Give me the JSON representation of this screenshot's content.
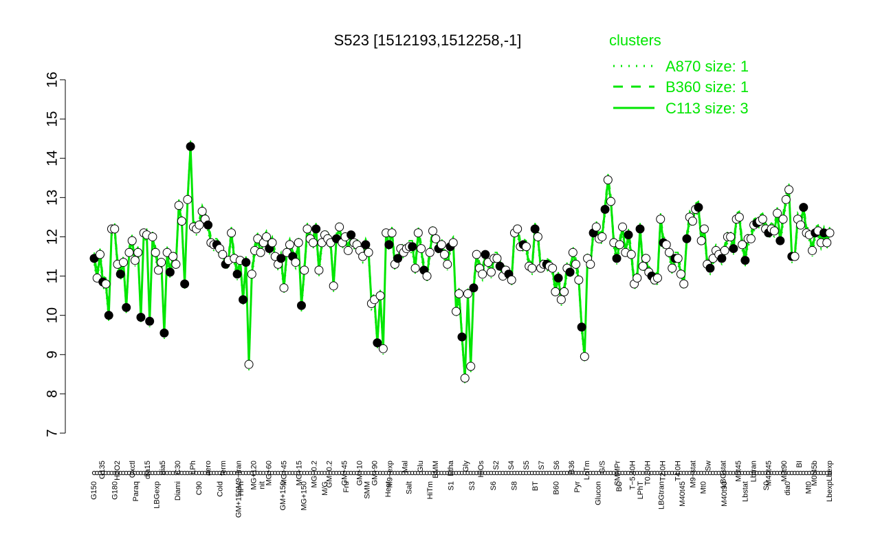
{
  "chart_data": {
    "type": "line",
    "title": "S523 [1512193,1512258,-1]",
    "xlabel": "",
    "ylabel": "",
    "ylim": [
      7,
      16
    ],
    "yticks": [
      7,
      8,
      9,
      10,
      11,
      12,
      13,
      14,
      15,
      16
    ],
    "grid": false,
    "legend_position": "top-right",
    "legend": {
      "title": "clusters",
      "entries": [
        {
          "label": "A870 size: 1",
          "style": "dotted"
        },
        {
          "label": "B360 size: 1",
          "style": "dashed"
        },
        {
          "label": "C113 size: 3",
          "style": "solid"
        }
      ]
    },
    "x_tick_labels_top": [
      "G135",
      "H2O2",
      "Oxctl",
      "dia15",
      "dia5",
      "C30",
      "LPh",
      "aero",
      "ferm",
      "GM+150M9−tran",
      "MG+120",
      "MG+60",
      "MG+45",
      "MG+15",
      "MG−0.2",
      "GM−0.2",
      "GM+45",
      "GM+10",
      "GM+90",
      "M9−exp",
      "Mal",
      "Glu",
      "BMM",
      "Etha",
      "Gly",
      "HiOs",
      "S2",
      "S4",
      "S5",
      "S7",
      "S6",
      "B36",
      "LoTm",
      "G/S",
      "SMMPr",
      "T−5.40H",
      "T0.30H",
      "T2.0H",
      "T4.0H",
      "M9−stat",
      "Sw",
      "LBGstat",
      "M0t45",
      "Lbtran",
      "M40t45",
      "M0t90",
      "BI",
      "M0t45b",
      "Lbexp"
    ],
    "x_tick_labels_bottom": [
      "G150",
      "G180",
      "Paraq",
      "LBGexp",
      "Diami",
      "C90",
      "Cold",
      "HPh",
      "nit",
      "GM+150",
      "MG+150",
      "M/G",
      "Fru",
      "SMM",
      "Heat",
      "Salt",
      "HiTm",
      "S1",
      "S3",
      "S6",
      "S8",
      "BT",
      "B60",
      "Pyr",
      "Glucon",
      "BC",
      "LPhT",
      "LBGtran",
      "M40t45",
      "Mt0",
      "M40t90",
      "Lbstat",
      "S0",
      "dia0",
      "Mt0",
      "Lbexp"
    ],
    "line_color": "#00e600",
    "point_fill": "#ffffff",
    "point_fill_dark": "#000000",
    "series": [
      {
        "values": [
          11.45,
          10.95,
          11.55,
          10.85,
          10.8,
          10.0,
          12.2,
          12.2,
          11.3,
          11.05,
          11.35,
          10.2,
          11.6,
          11.9,
          11.4,
          11.6,
          9.95,
          12.1,
          12.05,
          9.85,
          12.0,
          11.6,
          11.15,
          11.35,
          9.55,
          11.6,
          11.1,
          11.5,
          11.3,
          12.8,
          12.4,
          10.8,
          12.95,
          14.3,
          12.25,
          12.2,
          12.3,
          12.65,
          12.45,
          12.3,
          11.85,
          11.8,
          11.8,
          11.7,
          11.55,
          11.3,
          11.4,
          12.1,
          11.45,
          11.05,
          11.4,
          10.4,
          11.35,
          8.75,
          11.05,
          11.65,
          11.95,
          11.6,
          11.85,
          12.0,
          11.7,
          11.85,
          11.5,
          11.3,
          11.45,
          10.7,
          11.6,
          11.8,
          11.5,
          11.35,
          11.85,
          10.25,
          11.15,
          12.2,
          11.95,
          11.85,
          12.2,
          11.15,
          11.85,
          12.05,
          11.95,
          11.85,
          10.75,
          11.95,
          12.25,
          11.85,
          12.0,
          11.65,
          12.05,
          11.85,
          11.8,
          11.65,
          11.5,
          11.8,
          11.6,
          10.3,
          10.4,
          9.3,
          10.5,
          9.15,
          12.1,
          11.8,
          12.1,
          11.3,
          11.45,
          11.7,
          11.6,
          11.7,
          11.75,
          11.75,
          11.2,
          12.1,
          11.7,
          11.15,
          11.0,
          11.6,
          12.15,
          11.95,
          11.7,
          11.8,
          11.55,
          11.3,
          11.75,
          11.85,
          10.1,
          10.55,
          9.45,
          8.4,
          10.55,
          8.7,
          10.7,
          11.55,
          11.2,
          11.05,
          11.55,
          11.35,
          11.1,
          11.45,
          11.45,
          11.25,
          11.0,
          11.15,
          11.05,
          10.9,
          12.1,
          12.2,
          11.75,
          11.8,
          11.75,
          11.25,
          11.2,
          12.2,
          12.0,
          11.2,
          11.3,
          11.3,
          11.25,
          11.2,
          10.6,
          10.95,
          10.4,
          10.6,
          11.2,
          11.1,
          11.6,
          11.3,
          10.9,
          9.7,
          8.95,
          11.45,
          11.3,
          12.1,
          12.25,
          11.95,
          12.0,
          12.7,
          13.45,
          12.9,
          11.85,
          11.45,
          11.8,
          12.25,
          11.6,
          12.05,
          11.55,
          10.8,
          10.95,
          12.2,
          11.25,
          11.45,
          11.1,
          11.0,
          10.9,
          10.95,
          12.45,
          11.85,
          11.8,
          11.6,
          11.2,
          11.45,
          11.45,
          11.05,
          10.8,
          11.95,
          12.5,
          12.4,
          12.7,
          12.75,
          11.9,
          12.2,
          11.3,
          11.2,
          11.45,
          11.65,
          11.55,
          11.45,
          11.65,
          12.0,
          12.0,
          11.7,
          12.45,
          12.5,
          11.8,
          11.4,
          11.95,
          11.95,
          12.3,
          12.35,
          12.4,
          12.45,
          12.2,
          12.1,
          12.2,
          12.15,
          12.6,
          11.9,
          12.45,
          12.95,
          13.2,
          11.5,
          11.5,
          12.45,
          12.3,
          12.75,
          12.1,
          12.05,
          11.65,
          12.1,
          12.15,
          11.85,
          12.1,
          11.85,
          12.1
        ]
      }
    ],
    "dark_point_indices": [
      0,
      3,
      5,
      9,
      11,
      16,
      19,
      24,
      26,
      31,
      33,
      39,
      42,
      45,
      49,
      51,
      52,
      60,
      64,
      68,
      71,
      76,
      83,
      88,
      93,
      97,
      101,
      104,
      109,
      113,
      118,
      122,
      126,
      130,
      134,
      139,
      142,
      147,
      151,
      155,
      159,
      163,
      167,
      171,
      175,
      179,
      183,
      187,
      191,
      195,
      199,
      203,
      207,
      211,
      215,
      219,
      223,
      227,
      231,
      235,
      239,
      243,
      247,
      250
    ]
  }
}
